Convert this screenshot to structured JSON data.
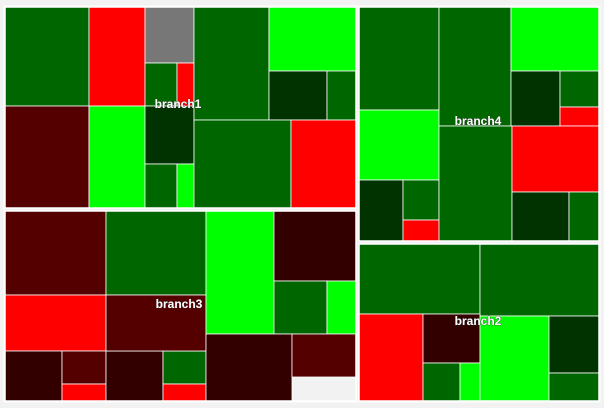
{
  "chart_data": {
    "type": "treemap",
    "color_scale": {
      "description": "red-to-green color coding of leaf cells",
      "colors": [
        "#ff0000",
        "#550000",
        "#330000",
        "#003300",
        "#006600",
        "#00ff00",
        "#777777"
      ]
    },
    "branches": [
      {
        "name": "branch1",
        "cells": [
          {
            "color": "#006600"
          },
          {
            "color": "#ff0000"
          },
          {
            "color": "#777777"
          },
          {
            "color": "#006600"
          },
          {
            "color": "#ff0000"
          },
          {
            "color": "#550000"
          },
          {
            "color": "#00ff00"
          },
          {
            "color": "#003300"
          },
          {
            "color": "#006600"
          },
          {
            "color": "#00ff00"
          },
          {
            "color": "#006600"
          },
          {
            "color": "#00ff00"
          },
          {
            "color": "#003300"
          },
          {
            "color": "#006600"
          },
          {
            "color": "#006600"
          },
          {
            "color": "#ff0000"
          }
        ]
      },
      {
        "name": "branch4",
        "cells": [
          {
            "color": "#006600"
          },
          {
            "color": "#00ff00"
          },
          {
            "color": "#006600"
          },
          {
            "color": "#00ff00"
          },
          {
            "color": "#003300"
          },
          {
            "color": "#006600"
          },
          {
            "color": "#ff0000"
          },
          {
            "color": "#003300"
          },
          {
            "color": "#006600"
          },
          {
            "color": "#ff0000"
          },
          {
            "color": "#006600"
          },
          {
            "color": "#ff0000"
          },
          {
            "color": "#003300"
          },
          {
            "color": "#006600"
          }
        ]
      },
      {
        "name": "branch3",
        "cells": [
          {
            "color": "#550000"
          },
          {
            "color": "#006600"
          },
          {
            "color": "#ff0000"
          },
          {
            "color": "#330000"
          },
          {
            "color": "#550000"
          },
          {
            "color": "#ff0000"
          },
          {
            "color": "#330000"
          },
          {
            "color": "#006600"
          },
          {
            "color": "#ff0000"
          },
          {
            "color": "#550000"
          },
          {
            "color": "#00ff00"
          },
          {
            "color": "#330000"
          },
          {
            "color": "#006600"
          },
          {
            "color": "#00ff00"
          },
          {
            "color": "#330000"
          },
          {
            "color": "#550000"
          }
        ]
      },
      {
        "name": "branch2",
        "cells": [
          {
            "color": "#006600"
          },
          {
            "color": "#006600"
          },
          {
            "color": "#ff0000"
          },
          {
            "color": "#330000"
          },
          {
            "color": "#006600"
          },
          {
            "color": "#00ff00"
          },
          {
            "color": "#00ff00"
          },
          {
            "color": "#003300"
          },
          {
            "color": "#006600"
          }
        ]
      }
    ]
  }
}
